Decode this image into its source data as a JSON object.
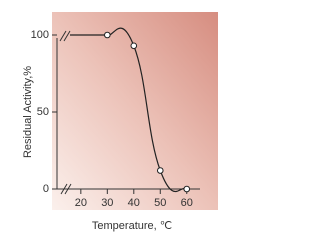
{
  "chart_data": {
    "type": "line",
    "x_label": "Temperature, ℃",
    "y_label": "Residual Activity,%",
    "x": [
      30,
      40,
      50,
      60
    ],
    "series": [
      {
        "color": "#222222",
        "values": [
          100,
          93,
          12,
          0
        ]
      }
    ],
    "xlim": [
      11,
      65
    ],
    "xticks": [
      20,
      30,
      40,
      50,
      60
    ],
    "ylim": [
      0,
      100
    ],
    "yticks": [
      0,
      50,
      100
    ]
  }
}
